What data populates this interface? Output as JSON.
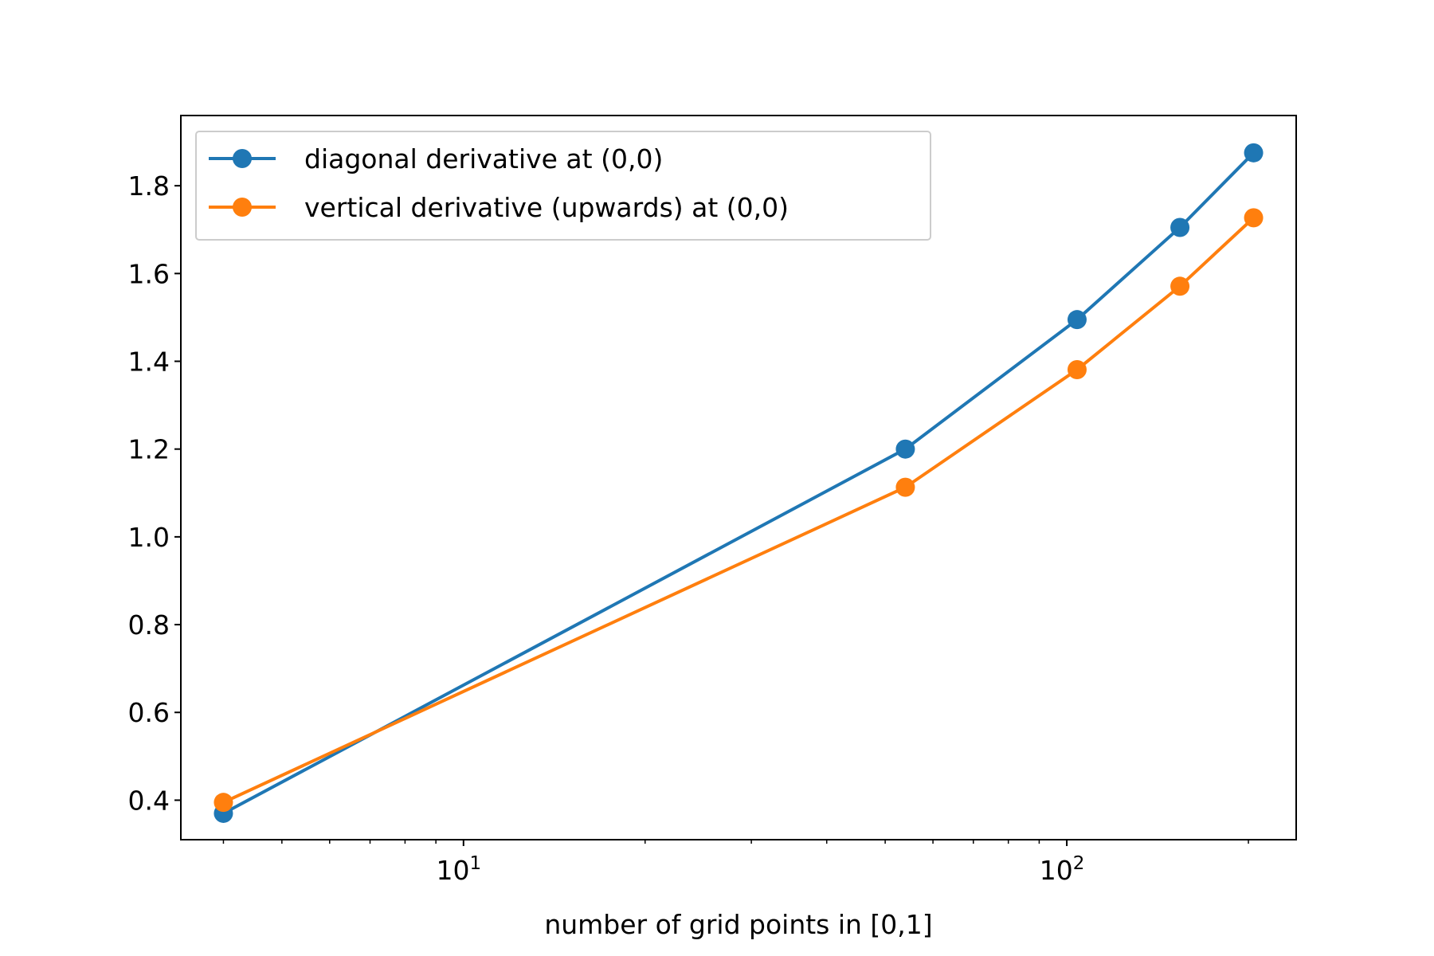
{
  "chart_data": {
    "type": "line",
    "title": "",
    "xlabel": "number of grid points in [0,1]",
    "ylabel": "",
    "xscale": "log",
    "xlim": [
      3.4,
      240
    ],
    "ylim": [
      0.31,
      1.96
    ],
    "x_ticks": [
      {
        "value": 10,
        "base": "10",
        "exp": "1"
      },
      {
        "value": 100,
        "base": "10",
        "exp": "2"
      }
    ],
    "y_ticks": [
      {
        "value": 0.4,
        "label": "0.4"
      },
      {
        "value": 0.6,
        "label": "0.6"
      },
      {
        "value": 0.8,
        "label": "0.8"
      },
      {
        "value": 1.0,
        "label": "1.0"
      },
      {
        "value": 1.2,
        "label": "1.2"
      },
      {
        "value": 1.4,
        "label": "1.4"
      },
      {
        "value": 1.6,
        "label": "1.6"
      },
      {
        "value": 1.8,
        "label": "1.8"
      }
    ],
    "grid": false,
    "legend_position": "upper-left",
    "x": [
      4,
      54,
      104,
      154,
      204
    ],
    "series": [
      {
        "name": "diagonal derivative at (0,0)",
        "color": "#1f77b4",
        "values": [
          0.37,
          1.2,
          1.495,
          1.705,
          1.875
        ]
      },
      {
        "name": "vertical derivative (upwards) at (0,0)",
        "color": "#ff7f0e",
        "values": [
          0.395,
          1.113,
          1.381,
          1.571,
          1.727
        ]
      }
    ]
  }
}
